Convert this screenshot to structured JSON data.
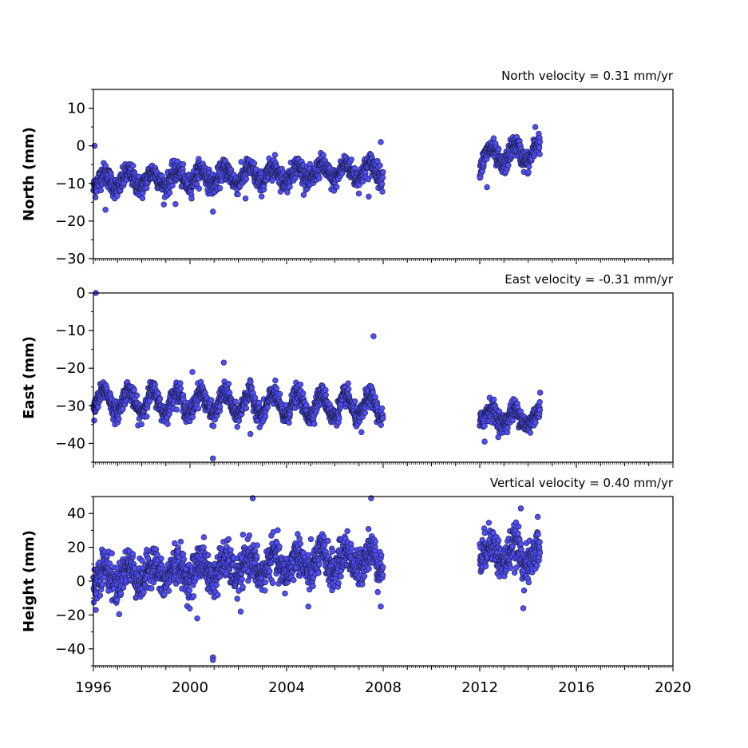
{
  "chart_data": {
    "type": "scatter",
    "x_ticks": [
      1996,
      2000,
      2004,
      2008,
      2012,
      2016,
      2020
    ],
    "xlim": [
      1996,
      2020
    ],
    "gaps": [
      [
        2008.0,
        2012.0
      ]
    ],
    "marker_color": "#4f4ff5",
    "marker_edge": "#1a1a44",
    "panels": [
      {
        "id": "north",
        "title": "North velocity = 0.31 mm/yr",
        "ylabel": "North (mm)",
        "ylim": [
          -30,
          15
        ],
        "yticks": [
          10,
          0,
          -10,
          -20,
          -30
        ],
        "yticklabels": [
          "10",
          "0",
          "−10",
          "−20",
          "−30"
        ],
        "series_profile": {
          "segment1": {
            "x_range": [
              1996.0,
              2008.0
            ],
            "mean": -8.0,
            "trend_per_yr": 0.25,
            "annual_amplitude": 2.0,
            "scatter_sd": 1.4
          },
          "segment2": {
            "x_range": [
              2012.0,
              2014.5
            ],
            "mean": -2.5,
            "trend_per_yr": 0.8,
            "annual_amplitude": 2.5,
            "scatter_sd": 1.4
          }
        },
        "outliers": [
          {
            "x": 1996.05,
            "y": 0
          },
          {
            "x": 1996.5,
            "y": -17
          },
          {
            "x": 1999.4,
            "y": -15.5
          },
          {
            "x": 2000.95,
            "y": -17.5
          },
          {
            "x": 2002.3,
            "y": -14
          },
          {
            "x": 2007.4,
            "y": -13.5
          },
          {
            "x": 2007.9,
            "y": 1
          },
          {
            "x": 2012.3,
            "y": -11
          },
          {
            "x": 2014.3,
            "y": 5
          }
        ]
      },
      {
        "id": "east",
        "title": "East velocity = -0.31 mm/yr",
        "ylabel": "East (mm)",
        "ylim": [
          -45,
          0
        ],
        "yticks": [
          0,
          -10,
          -20,
          -30,
          -40
        ],
        "yticklabels": [
          "0",
          "−10",
          "−20",
          "−30",
          "−40"
        ],
        "series_profile": {
          "segment1": {
            "x_range": [
              1996.0,
              2008.0
            ],
            "mean": -29.5,
            "trend_per_yr": -0.15,
            "annual_amplitude": 3.0,
            "scatter_sd": 1.3
          },
          "segment2": {
            "x_range": [
              2012.0,
              2014.5
            ],
            "mean": -33.0,
            "trend_per_yr": -0.3,
            "annual_amplitude": 2.0,
            "scatter_sd": 1.4
          }
        },
        "outliers": [
          {
            "x": 1996.1,
            "y": 0
          },
          {
            "x": 2000.1,
            "y": -21
          },
          {
            "x": 2000.95,
            "y": -44
          },
          {
            "x": 2001.4,
            "y": -18.5
          },
          {
            "x": 2002.5,
            "y": -37.5
          },
          {
            "x": 2007.6,
            "y": -11.5
          },
          {
            "x": 2007.1,
            "y": -37
          },
          {
            "x": 2012.2,
            "y": -39.5
          },
          {
            "x": 2014.5,
            "y": -26.5
          }
        ]
      },
      {
        "id": "height",
        "title": "Vertical velocity = 0.40 mm/yr",
        "ylabel": "Height (mm)",
        "ylim": [
          -50,
          50
        ],
        "yticks": [
          40,
          20,
          0,
          -20,
          -40
        ],
        "yticklabels": [
          "40",
          "20",
          "0",
          "−20",
          "−40"
        ],
        "series_profile": {
          "segment1": {
            "x_range": [
              1996.0,
              2008.0
            ],
            "mean": 8.0,
            "trend_per_yr": 0.9,
            "annual_amplitude": 6.0,
            "scatter_sd": 5.5
          },
          "segment2": {
            "x_range": [
              2012.0,
              2014.5
            ],
            "mean": 16.0,
            "trend_per_yr": -1.5,
            "annual_amplitude": 6.0,
            "scatter_sd": 5.5
          }
        },
        "outliers": [
          {
            "x": 1996.1,
            "y": -17
          },
          {
            "x": 2000.3,
            "y": -22
          },
          {
            "x": 2000.95,
            "y": -45
          },
          {
            "x": 2000.95,
            "y": -46.5
          },
          {
            "x": 2002.1,
            "y": -18
          },
          {
            "x": 2002.6,
            "y": 49
          },
          {
            "x": 2004.9,
            "y": -15
          },
          {
            "x": 2007.5,
            "y": 49
          },
          {
            "x": 2007.9,
            "y": -15
          },
          {
            "x": 2013.7,
            "y": 43
          },
          {
            "x": 2013.8,
            "y": -16
          },
          {
            "x": 2014.4,
            "y": 38
          }
        ]
      }
    ]
  }
}
